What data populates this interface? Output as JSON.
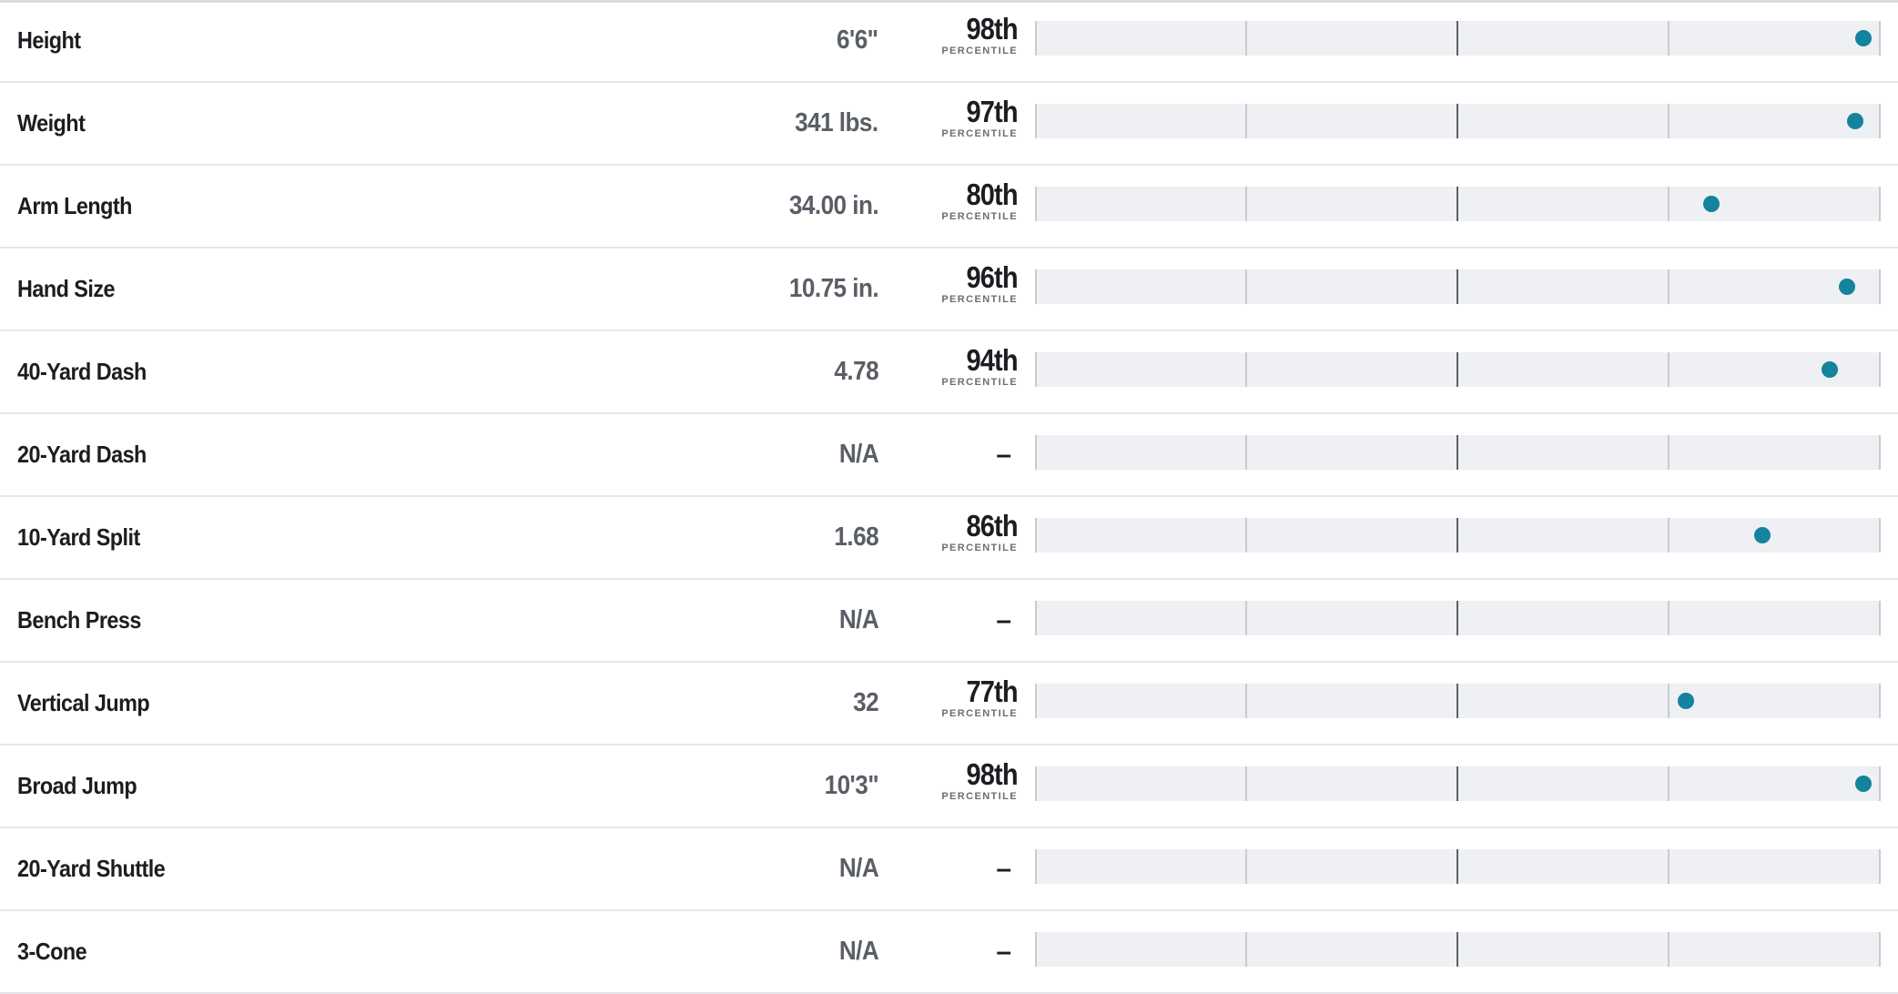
{
  "pct_caption": "PERCENTILE",
  "dot_color": "#14839d",
  "rows": [
    {
      "label": "Height",
      "value": "6'6\"",
      "percentile": 98,
      "percentile_text": "98th"
    },
    {
      "label": "Weight",
      "value": "341 lbs.",
      "percentile": 97,
      "percentile_text": "97th"
    },
    {
      "label": "Arm Length",
      "value": "34.00 in.",
      "percentile": 80,
      "percentile_text": "80th"
    },
    {
      "label": "Hand Size",
      "value": "10.75 in.",
      "percentile": 96,
      "percentile_text": "96th"
    },
    {
      "label": "40-Yard Dash",
      "value": "4.78",
      "percentile": 94,
      "percentile_text": "94th"
    },
    {
      "label": "20-Yard Dash",
      "value": "N/A",
      "percentile": null,
      "percentile_text": "–"
    },
    {
      "label": "10-Yard Split",
      "value": "1.68",
      "percentile": 86,
      "percentile_text": "86th"
    },
    {
      "label": "Bench Press",
      "value": "N/A",
      "percentile": null,
      "percentile_text": "–"
    },
    {
      "label": "Vertical Jump",
      "value": "32",
      "percentile": 77,
      "percentile_text": "77th"
    },
    {
      "label": "Broad Jump",
      "value": "10'3\"",
      "percentile": 98,
      "percentile_text": "98th"
    },
    {
      "label": "20-Yard Shuttle",
      "value": "N/A",
      "percentile": null,
      "percentile_text": "–"
    },
    {
      "label": "3-Cone",
      "value": "N/A",
      "percentile": null,
      "percentile_text": "–"
    }
  ]
}
